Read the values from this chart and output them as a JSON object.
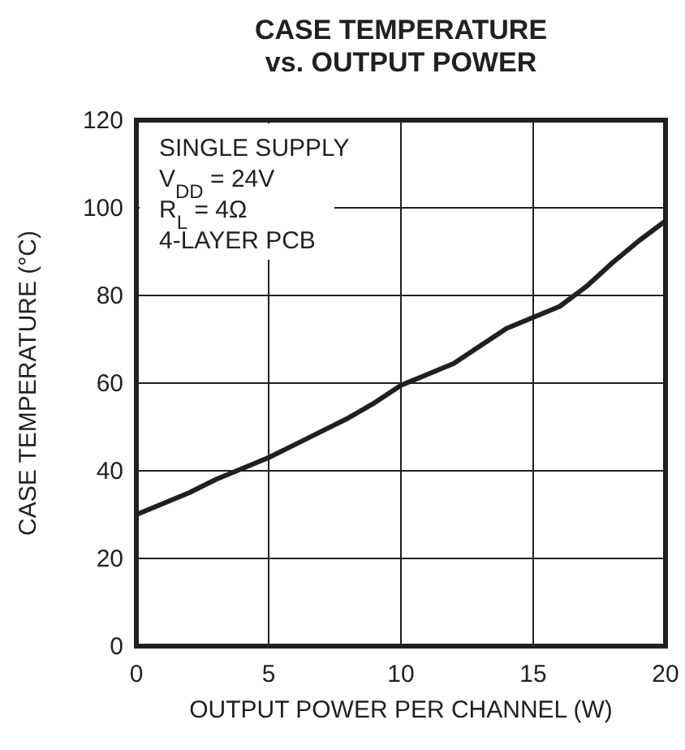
{
  "chart_data": {
    "type": "line",
    "title": "CASE TEMPERATURE\nvs. OUTPUT POWER",
    "xlabel": "OUTPUT POWER PER CHANNEL (W)",
    "ylabel": "CASE TEMPERATURE (°C)",
    "annotations": [
      "SINGLE SUPPLY",
      "V$_{DD}$ = 24V",
      "R$_{L}$ = 4Ω",
      "4-LAYER PCB"
    ],
    "x": [
      0,
      1,
      2,
      3,
      4,
      5,
      6,
      7,
      8,
      9,
      10,
      11,
      12,
      13,
      14,
      15,
      16,
      17,
      18,
      19,
      20
    ],
    "series": [
      {
        "color": "#231f20",
        "values": [
          30,
          32.5,
          35,
          38,
          40.5,
          43,
          46,
          49,
          52,
          55.5,
          59.5,
          62,
          64.5,
          68.5,
          72.5,
          75,
          77.5,
          82,
          87.5,
          92.5,
          97
        ]
      }
    ],
    "xlim": [
      0,
      20
    ],
    "ylim": [
      0,
      120
    ],
    "xticks": [
      0,
      5,
      10,
      15,
      20
    ],
    "yticks": [
      0,
      20,
      40,
      60,
      80,
      100,
      120
    ],
    "grid": true,
    "marker": "none",
    "line_style": "solid"
  }
}
